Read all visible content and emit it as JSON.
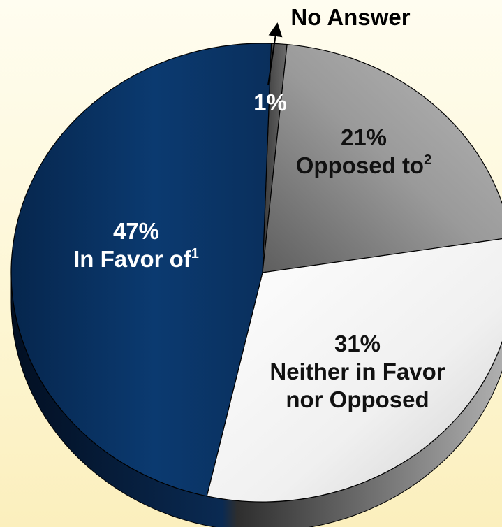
{
  "chart_data": {
    "type": "pie",
    "title": "",
    "slices": [
      {
        "name": "No Answer",
        "value": 1,
        "label": "1%",
        "color": "#4a4a4a",
        "text_color": "#ffffff"
      },
      {
        "name": "Opposed to",
        "sup": "2",
        "value": 21,
        "label": "21%",
        "color": "#8c8c8c",
        "text_color": "#111111"
      },
      {
        "name": "Neither in Favor nor Opposed",
        "name_lines": [
          "Neither in Favor",
          "nor Opposed"
        ],
        "value": 31,
        "label": "31%",
        "color": "#f2f2f2",
        "text_color": "#111111"
      },
      {
        "name": "In Favor of",
        "sup": "1",
        "value": 47,
        "label": "47%",
        "color": "#0d3a6e",
        "text_color": "#ffffff"
      }
    ],
    "annotation": {
      "text": "No Answer",
      "points_to": "No Answer"
    },
    "start_angle_deg": 2,
    "direction": "clockwise",
    "style": "3d-tilted"
  }
}
